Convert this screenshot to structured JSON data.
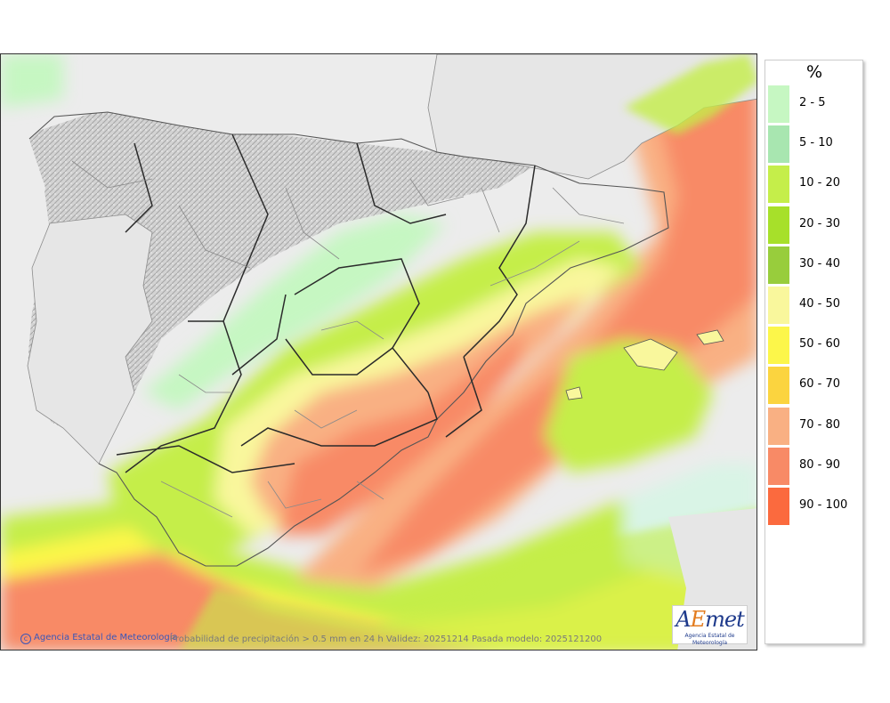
{
  "map": {
    "footer": {
      "credit": "Agencia Estatal de Meteorología",
      "note": "Probabilidad de precipitación > 0.5 mm en 24 h Validez: 20251214 Pasada modelo: 2025121200"
    },
    "logo": {
      "prefix": "A",
      "highlight": "E",
      "suffix": "met",
      "subtitle": "Agencia Estatal de Meteorología"
    }
  },
  "legend": {
    "title": "%",
    "items": [
      {
        "label": "2 - 5",
        "color": "#c6f7c2"
      },
      {
        "label": "5 - 10",
        "color": "#a8e6b0"
      },
      {
        "label": "10 - 20",
        "color": "#c5ee4a"
      },
      {
        "label": "20 - 30",
        "color": "#a7e02a"
      },
      {
        "label": "30 - 40",
        "color": "#98cd3c"
      },
      {
        "label": "40 - 50",
        "color": "#f9f79c"
      },
      {
        "label": "50 - 60",
        "color": "#fcf64a"
      },
      {
        "label": "60 - 70",
        "color": "#fbd43f"
      },
      {
        "label": "70 - 80",
        "color": "#f9b083"
      },
      {
        "label": "80 - 90",
        "color": "#f88a66"
      },
      {
        "label": "90 - 100",
        "color": "#fb6a3e"
      }
    ]
  }
}
